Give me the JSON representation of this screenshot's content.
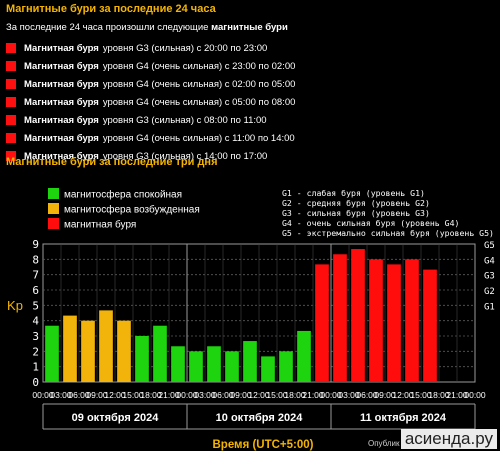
{
  "header": {
    "title": "Магнитные бури за последние 24 часа",
    "subtitle_prefix": "За последние 24 часа произошли следующие",
    "subtitle_bold": "магнитные бури"
  },
  "storms": [
    {
      "label": "Магнитная буря",
      "text": "уровня G3 (сильная) с 20:00 по 23:00"
    },
    {
      "label": "Магнитная буря",
      "text": "уровня G4 (очень сильная) с 23:00 по 02:00"
    },
    {
      "label": "Магнитная буря",
      "text": "уровня G4 (очень сильная) с 02:00 по 05:00"
    },
    {
      "label": "Магнитная буря",
      "text": "уровня G4 (очень сильная) с 05:00 по 08:00"
    },
    {
      "label": "Магнитная буря",
      "text": "уровня G3 (сильная) с 08:00 по 11:00"
    },
    {
      "label": "Магнитная буря",
      "text": "уровня G4 (очень сильная) с 11:00 по 14:00"
    },
    {
      "label": "Магнитная буря",
      "text": "уровня G3 (сильная) с 14:00 по 17:00"
    }
  ],
  "section2": {
    "title": "Магнитные бури за последние три дня"
  },
  "colors": {
    "calm": "#1ed40e",
    "excited": "#f2b40a",
    "storm": "#ff0d0d",
    "grid": "#888888",
    "accent": "#f4b400"
  },
  "chart_data": {
    "type": "bar",
    "ylabel": "Kp",
    "xlabel": "Время (UTC+5:00)",
    "ylim": [
      0,
      9
    ],
    "yticks": [
      "0",
      "1",
      "2",
      "3",
      "4",
      "5",
      "6",
      "7",
      "8",
      "9"
    ],
    "g_ticks": [
      {
        "value": 5,
        "label": "G1"
      },
      {
        "value": 6,
        "label": "G2"
      },
      {
        "value": 7,
        "label": "G3"
      },
      {
        "value": 8,
        "label": "G4"
      },
      {
        "value": 9,
        "label": "G5"
      }
    ],
    "legend": [
      {
        "label": "магнитосфера спокойная",
        "color": "#1ed40e"
      },
      {
        "label": "магнитосфера возбужденная",
        "color": "#f2b40a"
      },
      {
        "label": "магнитная буря",
        "color": "#ff0d0d"
      }
    ],
    "g_legend": [
      "G1 - слабая буря (уровень G1)",
      "G2 - средняя буря (уровень G2)",
      "G3 - сильная буря (уровень G3)",
      "G4 - очень сильная буря (уровень G4)",
      "G5 - экстремально сильная буря (уровень G5)"
    ],
    "x_ticks": [
      "00:00",
      "03:00",
      "06:00",
      "09:00",
      "12:00",
      "15:00",
      "18:00",
      "21:00",
      "00:00",
      "03:00",
      "06:00",
      "09:00",
      "12:00",
      "15:00",
      "18:00",
      "21:00",
      "00:00",
      "03:00",
      "06:00",
      "09:00",
      "12:00",
      "15:00",
      "18:00",
      "21:00",
      "00:00"
    ],
    "days": [
      "09 октября 2024",
      "10 октября 2024",
      "11 октября 2024"
    ],
    "values": [
      3.67,
      4.33,
      4.0,
      4.67,
      4.0,
      3.0,
      3.67,
      2.33,
      2.0,
      2.33,
      2.0,
      2.67,
      1.67,
      2.0,
      3.33,
      7.67,
      8.33,
      8.67,
      8.0,
      7.67,
      8.0,
      7.33,
      0,
      0
    ],
    "categories": [
      "calm",
      "excited",
      "excited",
      "excited",
      "excited",
      "calm",
      "calm",
      "calm",
      "calm",
      "calm",
      "calm",
      "calm",
      "calm",
      "calm",
      "calm",
      "storm",
      "storm",
      "storm",
      "storm",
      "storm",
      "storm",
      "storm",
      "none",
      "none"
    ],
    "grid": true
  },
  "footer": {
    "published": "Опублик",
    "watermark": "асиенда.ру"
  }
}
